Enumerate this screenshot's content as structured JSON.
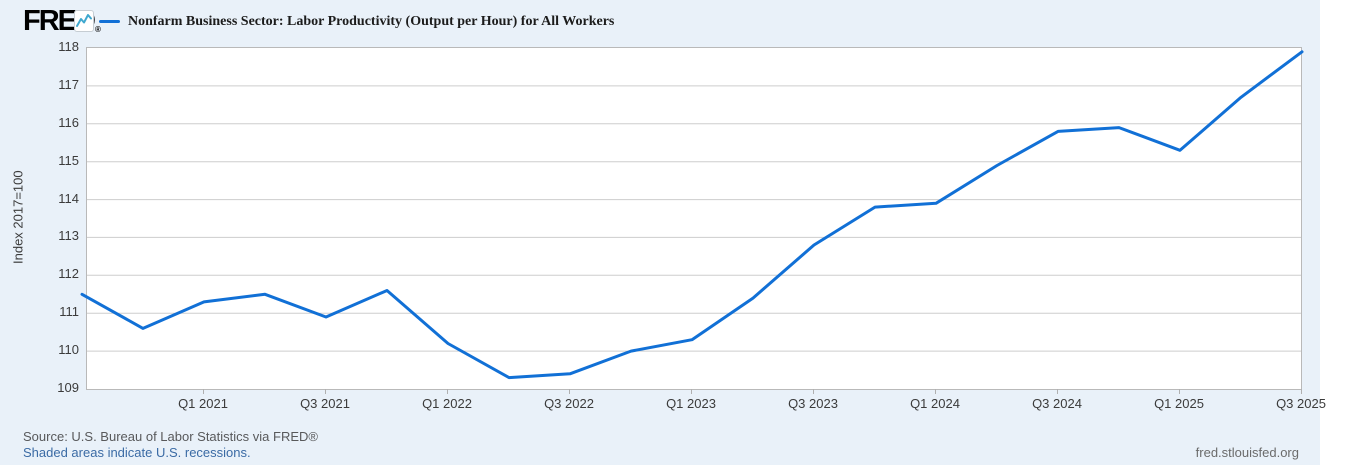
{
  "header": {
    "logo_text": "FRED",
    "logo_reg": "®",
    "title": "Nonfarm Business Sector: Labor Productivity (Output per Hour) for All Workers"
  },
  "colors": {
    "line": "#1170d6",
    "background": "#e9f1f9",
    "grid": "#cdcdcd",
    "link_blue": "#3b6ba5"
  },
  "chart_data": {
    "type": "line",
    "title": "Nonfarm Business Sector: Labor Productivity (Output per Hour) for All Workers",
    "xlabel": "",
    "ylabel": "Index 2017=100",
    "ylim": [
      109,
      118
    ],
    "yticks": [
      109,
      110,
      111,
      112,
      113,
      114,
      115,
      116,
      117,
      118
    ],
    "xticklabels": [
      "Q1 2021",
      "Q3 2021",
      "Q1 2022",
      "Q3 2022",
      "Q1 2023",
      "Q3 2023",
      "Q1 2024",
      "Q3 2024",
      "Q1 2025",
      "Q3 2025"
    ],
    "grid": "horizontal",
    "legend_position": "top",
    "series": [
      {
        "name": "Nonfarm Business Sector: Labor Productivity (Output per Hour) for All Workers",
        "x": [
          "2020 Q3",
          "2020 Q4",
          "2021 Q1",
          "2021 Q2",
          "2021 Q3",
          "2021 Q4",
          "2022 Q1",
          "2022 Q2",
          "2022 Q3",
          "2022 Q4",
          "2023 Q1",
          "2023 Q2",
          "2023 Q3",
          "2023 Q4",
          "2024 Q1",
          "2024 Q2",
          "2024 Q3",
          "2024 Q4",
          "2025 Q1",
          "2025 Q2",
          "2025 Q3"
        ],
        "values": [
          111.5,
          110.6,
          111.3,
          111.5,
          110.9,
          111.6,
          110.2,
          109.3,
          109.4,
          110.0,
          110.3,
          111.4,
          112.8,
          113.8,
          113.9,
          114.9,
          115.8,
          115.9,
          115.3,
          116.7,
          117.9
        ]
      }
    ]
  },
  "footer": {
    "source": "Source: U.S. Bureau of Labor Statistics via FRED®",
    "recessions_note": "Shaded areas indicate U.S. recessions.",
    "site": "fred.stlouisfed.org"
  }
}
